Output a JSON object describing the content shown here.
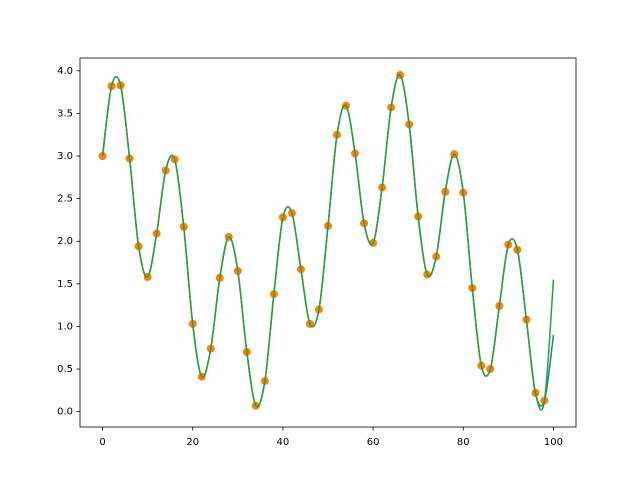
{
  "chart_data": {
    "type": "combo",
    "xlim": [
      -5,
      105
    ],
    "xticks": [
      0,
      20,
      40,
      60,
      80,
      100
    ],
    "ylim": [
      -0.18,
      4.15
    ],
    "yticks": [
      {
        "value": 0,
        "label": "0.0"
      },
      0.5,
      {
        "value": 1,
        "label": "1.0"
      },
      1.5,
      {
        "value": 2,
        "label": "2.0"
      },
      2.5,
      {
        "value": 3,
        "label": "3.0"
      },
      3.5,
      {
        "value": 4,
        "label": "4.0"
      }
    ],
    "series": [
      {
        "type": "line",
        "color": "#1f77b4",
        "x": [
          0,
          2,
          4,
          6,
          8,
          10,
          12,
          14,
          16,
          18,
          20,
          22,
          24,
          26,
          28,
          30,
          32,
          34,
          36,
          38,
          40,
          42,
          44,
          46,
          48,
          50,
          52,
          54,
          56,
          58,
          60,
          62,
          64,
          66,
          68,
          70,
          72,
          74,
          76,
          78,
          80,
          82,
          84,
          86,
          88,
          90,
          92,
          94,
          96,
          98,
          100
        ],
        "values": [
          3.0,
          3.82,
          3.83,
          2.97,
          1.94,
          1.58,
          2.09,
          2.83,
          2.96,
          2.17,
          1.03,
          0.41,
          0.74,
          1.57,
          2.05,
          1.65,
          0.7,
          0.07,
          0.36,
          1.38,
          2.28,
          2.33,
          1.67,
          1.03,
          1.2,
          2.18,
          3.25,
          3.59,
          3.03,
          2.21,
          1.98,
          2.63,
          3.57,
          3.95,
          3.37,
          2.29,
          1.61,
          1.82,
          2.58,
          3.02,
          2.57,
          1.45,
          0.54,
          0.5,
          1.24,
          1.96,
          1.9,
          1.08,
          0.22,
          0.13,
          0.9
        ]
      },
      {
        "type": "scatter",
        "color": "#ff7f0e",
        "x": [
          0,
          2,
          4,
          6,
          8,
          10,
          12,
          14,
          16,
          18,
          20,
          22,
          24,
          26,
          28,
          30,
          32,
          34,
          36,
          38,
          40,
          42,
          44,
          46,
          48,
          50,
          52,
          54,
          56,
          58,
          60,
          62,
          64,
          66,
          68,
          70,
          72,
          74,
          76,
          78,
          80,
          82,
          84,
          86,
          88,
          90,
          92,
          94,
          96,
          98
        ],
        "values": [
          3.0,
          3.82,
          3.83,
          2.97,
          1.94,
          1.58,
          2.09,
          2.83,
          2.96,
          2.17,
          1.03,
          0.41,
          0.74,
          1.57,
          2.05,
          1.65,
          0.7,
          0.07,
          0.36,
          1.38,
          2.28,
          2.33,
          1.67,
          1.03,
          1.2,
          2.18,
          3.25,
          3.59,
          3.03,
          2.21,
          1.98,
          2.63,
          3.57,
          3.95,
          3.37,
          2.29,
          1.61,
          1.82,
          2.58,
          3.02,
          2.57,
          1.45,
          0.54,
          0.5,
          1.24,
          1.96,
          1.9,
          1.08,
          0.22,
          0.13
        ]
      },
      {
        "type": "line",
        "color": "#2ca02c",
        "x": [
          0,
          2,
          4,
          6,
          8,
          10,
          12,
          14,
          16,
          18,
          20,
          22,
          24,
          26,
          28,
          30,
          32,
          34,
          36,
          38,
          40,
          42,
          44,
          46,
          48,
          50,
          52,
          54,
          56,
          58,
          60,
          62,
          64,
          66,
          68,
          70,
          72,
          74,
          76,
          78,
          80,
          82,
          84,
          86,
          88,
          90,
          92,
          94,
          96,
          98,
          100
        ],
        "values": [
          3.0,
          3.82,
          3.83,
          2.97,
          1.94,
          1.58,
          2.09,
          2.83,
          2.96,
          2.17,
          1.03,
          0.41,
          0.74,
          1.57,
          2.05,
          1.65,
          0.7,
          0.07,
          0.36,
          1.38,
          2.28,
          2.33,
          1.67,
          1.03,
          1.2,
          2.18,
          3.25,
          3.59,
          3.03,
          2.21,
          1.98,
          2.63,
          3.57,
          3.95,
          3.37,
          2.29,
          1.61,
          1.82,
          2.58,
          3.02,
          2.57,
          1.45,
          0.54,
          0.5,
          1.24,
          1.96,
          1.9,
          1.08,
          0.22,
          0.13,
          1.55
        ]
      }
    ]
  }
}
